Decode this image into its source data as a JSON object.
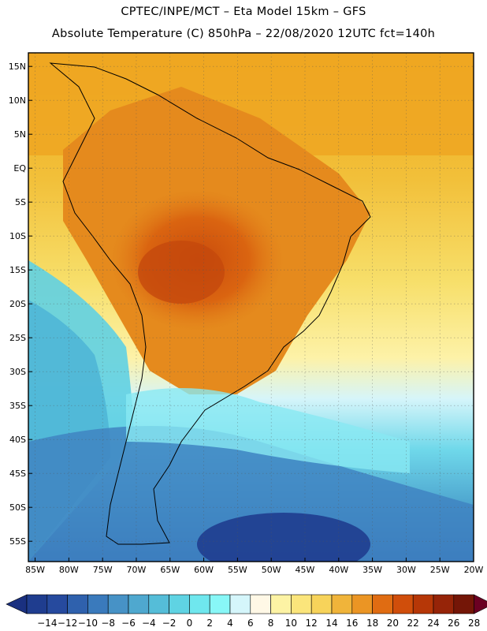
{
  "header": {
    "line1": "CPTEC/INPE/MCT –  Eta Model 15km – GFS",
    "line2": "Absolute Temperature (C) 850hPa – 22/08/2020 12UTC fct=140h"
  },
  "map": {
    "lat_labels": [
      "15N",
      "10N",
      "5N",
      "EQ",
      "5S",
      "10S",
      "15S",
      "20S",
      "25S",
      "30S",
      "35S",
      "40S",
      "45S",
      "50S",
      "55S"
    ],
    "lon_labels": [
      "85W",
      "80W",
      "75W",
      "70W",
      "65W",
      "60W",
      "55W",
      "50W",
      "45W",
      "40W",
      "35W",
      "30W",
      "25W",
      "20W"
    ],
    "lat_values": [
      15,
      10,
      5,
      0,
      -5,
      -10,
      -15,
      -20,
      -25,
      -30,
      -35,
      -40,
      -45,
      -50,
      -55
    ],
    "lon_values": [
      -85,
      -80,
      -75,
      -70,
      -65,
      -60,
      -55,
      -50,
      -45,
      -40,
      -35,
      -30,
      -25,
      -20
    ],
    "lat_range": [
      -58,
      17
    ],
    "lon_range": [
      -86,
      -20
    ]
  },
  "colorbar": {
    "labels": [
      "-14",
      "-12",
      "-10",
      "-8",
      "-6",
      "-4",
      "-2",
      "0",
      "2",
      "4",
      "6",
      "8",
      "10",
      "12",
      "14",
      "16",
      "18",
      "20",
      "22",
      "24",
      "26",
      "28"
    ],
    "colors": [
      "#1f3d8f",
      "#264a9e",
      "#2f61ad",
      "#3a7abc",
      "#4792c6",
      "#4fa8cf",
      "#55bdd8",
      "#5fd3e3",
      "#6fe7ee",
      "#88f7f7",
      "#d5f6fb",
      "#fff8e6",
      "#fdf3a4",
      "#fbe57b",
      "#f7d35a",
      "#f0b43a",
      "#eb9524",
      "#e06c12",
      "#d04e0b",
      "#b63707",
      "#962408",
      "#741607"
    ],
    "under_color": "#1a3080",
    "over_color": "#6b0022"
  }
}
